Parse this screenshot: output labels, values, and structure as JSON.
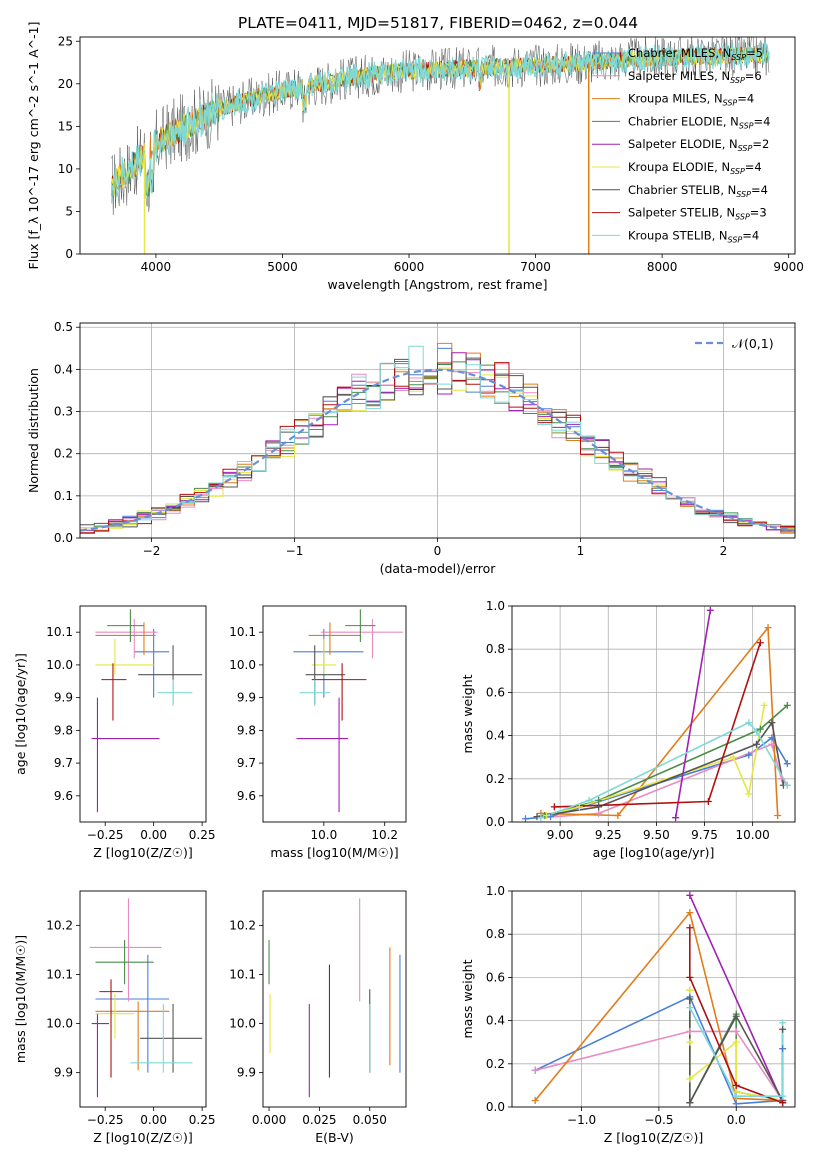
{
  "figure_title": "PLATE=0411, MJD=51817, FIBERID=0462, z=0.044",
  "colors": {
    "Chabrier MILES": "#4a7fd8",
    "Salpeter MILES": "#e88cc2",
    "Kroupa MILES": "#e07c1a",
    "Chabrier ELODIE": "#4a8c4a",
    "Salpeter ELODIE": "#a21fb5",
    "Kroupa ELODIE": "#e6e645",
    "Chabrier STELIB": "#555555",
    "Salpeter STELIB": "#b01010",
    "Kroupa STELIB": "#7fd8d8"
  },
  "chart_data": [
    {
      "id": "spectrum",
      "type": "line",
      "xlabel": "wavelength [Angstrom, rest frame]",
      "ylabel": "Flux [f_λ 10^-17 erg cm^-2 s^-1 A^-1]",
      "xlim": [
        3400,
        9050
      ],
      "ylim": [
        0,
        25.5
      ],
      "xticks": [
        4000,
        5000,
        6000,
        7000,
        8000,
        9000
      ],
      "yticks": [
        0,
        5,
        10,
        15,
        20,
        25
      ],
      "legend_position": "right",
      "legend": [
        {
          "name": "Chabrier MILES",
          "n_ssp": 5
        },
        {
          "name": "Salpeter MILES",
          "n_ssp": 6
        },
        {
          "name": "Kroupa MILES",
          "n_ssp": 4
        },
        {
          "name": "Chabrier ELODIE",
          "n_ssp": 4
        },
        {
          "name": "Salpeter ELODIE",
          "n_ssp": 2
        },
        {
          "name": "Kroupa ELODIE",
          "n_ssp": 4
        },
        {
          "name": "Chabrier STELIB",
          "n_ssp": 4
        },
        {
          "name": "Salpeter STELIB",
          "n_ssp": 3
        },
        {
          "name": "Kroupa STELIB",
          "n_ssp": 4
        }
      ],
      "continuum": {
        "x": [
          3650,
          3800,
          3950,
          4100,
          4300,
          4500,
          4700,
          4900,
          5100,
          5300,
          5500,
          5800,
          6100,
          6400,
          6700,
          7000,
          7300,
          7600,
          7900,
          8200,
          8500,
          8800
        ],
        "y": [
          8,
          10,
          12.5,
          14,
          15.5,
          17,
          18,
          18.8,
          19.5,
          20,
          20.6,
          21.3,
          21.6,
          21.8,
          22,
          22.2,
          22.4,
          22.7,
          23,
          23.2,
          23.3,
          23.4
        ]
      },
      "drops": [
        {
          "series": "Kroupa ELODIE",
          "x": 3910,
          "y_min": 0
        },
        {
          "series": "Kroupa ELODIE",
          "x": 6790,
          "y_min": 0
        },
        {
          "series": "Kroupa MILES",
          "x": 7420,
          "y_min": 0
        }
      ]
    },
    {
      "id": "residuals",
      "type": "step",
      "xlabel": "(data-model)/error",
      "ylabel": "Normed distribution",
      "xlim": [
        -2.5,
        2.5
      ],
      "ylim": [
        0,
        0.51
      ],
      "xticks": [
        -2,
        -1,
        0,
        1,
        2
      ],
      "yticks": [
        0.0,
        0.1,
        0.2,
        0.3,
        0.4,
        0.5
      ],
      "bin_width": 0.1,
      "grid": true,
      "legend": [
        "𝒩(0,1)"
      ],
      "legend_position": "top-right",
      "reference": {
        "name": "𝒩(0,1)",
        "mean": 0,
        "sigma": 1,
        "style": "dashed",
        "color": "#6a8fd8"
      }
    },
    {
      "id": "age-vs-Z",
      "type": "errorbar",
      "xlabel": "Z [log10(Z/Z☉)]",
      "ylabel": "age [log10(age/yr)]",
      "xlim": [
        -0.38,
        0.27
      ],
      "ylim": [
        9.52,
        10.18
      ],
      "xticks": [
        -0.25,
        0.0,
        0.25
      ],
      "yticks": [
        9.6,
        9.7,
        9.8,
        9.9,
        10.0,
        10.1
      ],
      "points": [
        {
          "series": "Chabrier MILES",
          "x": 0.0,
          "xerr": [
            0.1,
            0.08
          ],
          "y": 10.04,
          "yerr": [
            0.14,
            0.07
          ]
        },
        {
          "series": "Salpeter MILES",
          "x": -0.1,
          "xerr": [
            0.2,
            0.12
          ],
          "y": 10.1,
          "yerr": [
            0.08,
            0.04
          ]
        },
        {
          "series": "Kroupa MILES",
          "x": -0.05,
          "xerr": [
            0.25,
            0.06
          ],
          "y": 10.09,
          "yerr": [
            0.06,
            0.04
          ]
        },
        {
          "series": "Chabrier ELODIE",
          "x": -0.12,
          "xerr": [
            0.12,
            0.07
          ],
          "y": 10.12,
          "yerr": [
            0.05,
            0.05
          ]
        },
        {
          "series": "Salpeter ELODIE",
          "x": -0.29,
          "xerr": [
            0.03,
            0.32
          ],
          "y": 9.775,
          "yerr": [
            0.225,
            0.125
          ]
        },
        {
          "series": "Kroupa ELODIE",
          "x": -0.2,
          "xerr": [
            0.1,
            0.2
          ],
          "y": 10.0,
          "yerr": [
            0.03,
            0.08
          ]
        },
        {
          "series": "Chabrier STELIB",
          "x": 0.1,
          "xerr": [
            0.18,
            0.15
          ],
          "y": 9.97,
          "yerr": [
            0.09,
            0.09
          ]
        },
        {
          "series": "Salpeter STELIB",
          "x": -0.21,
          "xerr": [
            0.06,
            0.07
          ],
          "y": 9.955,
          "yerr": [
            0.125,
            0.05
          ]
        },
        {
          "series": "Kroupa STELIB",
          "x": 0.1,
          "xerr": [
            0.08,
            0.1
          ],
          "y": 9.915,
          "yerr": [
            0.04,
            0.04
          ]
        }
      ]
    },
    {
      "id": "age-vs-mass",
      "type": "errorbar",
      "xlabel": "mass [log10(M/M☉)]",
      "ylabel": "",
      "xlim": [
        9.8,
        10.27
      ],
      "ylim": [
        9.52,
        10.18
      ],
      "xticks": [
        10.0,
        10.2
      ],
      "yticks": [
        9.6,
        9.7,
        9.8,
        9.9,
        10.0,
        10.1
      ],
      "points": [
        {
          "series": "Chabrier MILES",
          "x": 10.0,
          "xerr": [
            0.1,
            0.13
          ],
          "y": 10.04,
          "yerr": [
            0.14,
            0.07
          ]
        },
        {
          "series": "Salpeter MILES",
          "x": 10.16,
          "xerr": [
            0.17,
            0.1
          ],
          "y": 10.1,
          "yerr": [
            0.08,
            0.04
          ]
        },
        {
          "series": "Kroupa MILES",
          "x": 10.02,
          "xerr": [
            0.07,
            0.1
          ],
          "y": 10.09,
          "yerr": [
            0.06,
            0.04
          ]
        },
        {
          "series": "Chabrier ELODIE",
          "x": 10.12,
          "xerr": [
            0.05,
            0.05
          ],
          "y": 10.12,
          "yerr": [
            0.05,
            0.05
          ]
        },
        {
          "series": "Salpeter ELODIE",
          "x": 10.05,
          "xerr": [
            0.14,
            0.03
          ],
          "y": 9.775,
          "yerr": [
            0.225,
            0.125
          ]
        },
        {
          "series": "Kroupa ELODIE",
          "x": 10.0,
          "xerr": [
            0.04,
            0.04
          ],
          "y": 10.0,
          "yerr": [
            0.03,
            0.08
          ]
        },
        {
          "series": "Chabrier STELIB",
          "x": 9.97,
          "xerr": [
            0.03,
            0.1
          ],
          "y": 9.97,
          "yerr": [
            0.09,
            0.09
          ]
        },
        {
          "series": "Salpeter STELIB",
          "x": 10.06,
          "xerr": [
            0.1,
            0.08
          ],
          "y": 9.955,
          "yerr": [
            0.125,
            0.05
          ]
        },
        {
          "series": "Kroupa STELIB",
          "x": 9.97,
          "xerr": [
            0.05,
            0.05
          ],
          "y": 9.915,
          "yerr": [
            0.04,
            0.04
          ]
        }
      ]
    },
    {
      "id": "weight-vs-age",
      "type": "line",
      "xlabel": "age [log10(age/yr)]",
      "ylabel": "mass weight",
      "xlim": [
        8.75,
        10.22
      ],
      "ylim": [
        0.0,
        1.0
      ],
      "xticks": [
        9.0,
        9.25,
        9.5,
        9.75,
        10.0
      ],
      "yticks": [
        0.0,
        0.2,
        0.4,
        0.6,
        0.8,
        1.0
      ],
      "grid": true,
      "series": [
        {
          "name": "Chabrier MILES",
          "x": [
            8.82,
            8.95,
            9.98,
            10.1,
            10.18
          ],
          "y": [
            0.015,
            0.025,
            0.31,
            0.39,
            0.27
          ]
        },
        {
          "name": "Salpeter MILES",
          "x": [
            8.9,
            9.2,
            10.1,
            10.15,
            10.18
          ],
          "y": [
            0.02,
            0.04,
            0.36,
            0.2,
            0.17
          ]
        },
        {
          "name": "Kroupa MILES",
          "x": [
            8.9,
            9.3,
            10.08,
            10.13
          ],
          "y": [
            0.04,
            0.03,
            0.9,
            0.03
          ]
        },
        {
          "name": "Chabrier ELODIE",
          "x": [
            8.92,
            9.2,
            10.04,
            10.18
          ],
          "y": [
            0.03,
            0.1,
            0.43,
            0.54
          ]
        },
        {
          "name": "Salpeter ELODIE",
          "x": [
            9.6,
            9.78
          ],
          "y": [
            0.02,
            0.98
          ]
        },
        {
          "name": "Kroupa ELODIE",
          "x": [
            8.93,
            9.1,
            9.9,
            9.98,
            10.06
          ],
          "y": [
            0.03,
            0.07,
            0.3,
            0.13,
            0.54
          ]
        },
        {
          "name": "Chabrier STELIB",
          "x": [
            8.88,
            9.2,
            10.02,
            10.1,
            10.16
          ],
          "y": [
            0.025,
            0.07,
            0.36,
            0.46,
            0.17
          ]
        },
        {
          "name": "Salpeter STELIB",
          "x": [
            8.97,
            9.77,
            10.04
          ],
          "y": [
            0.07,
            0.095,
            0.83
          ]
        },
        {
          "name": "Kroupa STELIB",
          "x": [
            8.9,
            9.15,
            9.98,
            10.02,
            10.18
          ],
          "y": [
            0.02,
            0.1,
            0.46,
            0.42,
            0.17
          ]
        }
      ]
    },
    {
      "id": "mass-vs-Z",
      "type": "errorbar",
      "xlabel": "Z [log10(Z/Z☉)]",
      "ylabel": "mass [log10(M/M☉)]",
      "xlim": [
        -0.38,
        0.27
      ],
      "ylim": [
        9.83,
        10.27
      ],
      "xticks": [
        -0.25,
        0.0,
        0.25
      ],
      "yticks": [
        9.9,
        10.0,
        10.1,
        10.2
      ],
      "points": [
        {
          "series": "Chabrier MILES",
          "x": -0.03,
          "xerr": [
            0.27,
            0.11
          ],
          "y": 10.05,
          "yerr": [
            0.15,
            0.09
          ]
        },
        {
          "series": "Salpeter MILES",
          "x": -0.13,
          "xerr": [
            0.2,
            0.17
          ],
          "y": 10.155,
          "yerr": [
            0.11,
            0.1
          ]
        },
        {
          "series": "Kroupa MILES",
          "x": -0.08,
          "xerr": [
            0.22,
            0.16
          ],
          "y": 10.025,
          "yerr": [
            0.12,
            0.02
          ]
        },
        {
          "series": "Chabrier ELODIE",
          "x": -0.15,
          "xerr": [
            0.15,
            0.15
          ],
          "y": 10.125,
          "yerr": [
            0.045,
            0.045
          ]
        },
        {
          "series": "Salpeter ELODIE",
          "x": -0.29,
          "xerr": [
            0.03,
            0.06
          ],
          "y": 10.0,
          "yerr": [
            0.15,
            0.02
          ]
        },
        {
          "series": "Kroupa ELODIE",
          "x": -0.2,
          "xerr": [
            0.1,
            0.1
          ],
          "y": 10.02,
          "yerr": [
            0.05,
            0.04
          ]
        },
        {
          "series": "Chabrier STELIB",
          "x": 0.1,
          "xerr": [
            0.17,
            0.15
          ],
          "y": 9.97,
          "yerr": [
            0.07,
            0.07
          ]
        },
        {
          "series": "Salpeter STELIB",
          "x": -0.22,
          "xerr": [
            0.06,
            0.06
          ],
          "y": 10.065,
          "yerr": [
            0.175,
            0.025
          ]
        },
        {
          "series": "Kroupa STELIB",
          "x": 0.05,
          "xerr": [
            0.17,
            0.15
          ],
          "y": 9.92,
          "yerr": [
            0.02,
            0.12
          ]
        }
      ]
    },
    {
      "id": "mass-vs-EBV",
      "type": "errorbar",
      "xlabel": "E(B-V)",
      "ylabel": "",
      "xlim": [
        -0.003,
        0.068
      ],
      "ylim": [
        9.83,
        10.27
      ],
      "xticks": [
        0.0,
        0.025,
        0.05
      ],
      "xticklabels": [
        "0.000",
        "0.025",
        "0.050"
      ],
      "yticks": [
        9.9,
        10.0,
        10.1,
        10.2
      ],
      "points": [
        {
          "series": "Chabrier MILES",
          "x": 0.065,
          "y": 10.05,
          "yerr": [
            0.15,
            0.09
          ]
        },
        {
          "series": "Salpeter MILES",
          "x": 0.045,
          "y": 10.155,
          "yerr": [
            0.11,
            0.1
          ]
        },
        {
          "series": "Kroupa MILES",
          "x": 0.06,
          "y": 10.025,
          "yerr": [
            0.11,
            0.13
          ]
        },
        {
          "series": "Chabrier ELODIE",
          "x": 0.0,
          "y": 10.125,
          "yerr": [
            0.045,
            0.045
          ]
        },
        {
          "series": "Salpeter ELODIE",
          "x": 0.02,
          "y": 9.95,
          "yerr": [
            0.1,
            0.09
          ]
        },
        {
          "series": "Kroupa ELODIE",
          "x": 0.0005,
          "y": 10.0,
          "yerr": [
            0.06,
            0.06
          ]
        },
        {
          "series": "Chabrier STELIB",
          "x": 0.05,
          "y": 9.97,
          "yerr": [
            0.07,
            0.1
          ]
        },
        {
          "series": "Salpeter STELIB",
          "x": 0.03,
          "y": 10.0,
          "yerr": [
            0.11,
            0.12
          ]
        },
        {
          "series": "Kroupa STELIB",
          "x": 0.05,
          "y": 9.97,
          "yerr": [
            0.07,
            0.07
          ]
        }
      ]
    },
    {
      "id": "weight-vs-Z",
      "type": "line",
      "xlabel": "Z [log10(Z/Z☉)]",
      "ylabel": "mass weight",
      "xlim": [
        -1.45,
        0.38
      ],
      "ylim": [
        0.0,
        1.0
      ],
      "xticks": [
        -1.0,
        -0.5,
        0.0
      ],
      "yticks": [
        0.0,
        0.2,
        0.4,
        0.6,
        0.8,
        1.0
      ],
      "grid": true,
      "series": [
        {
          "name": "Chabrier MILES",
          "x": [
            -1.3,
            -0.3,
            0.0,
            0.3,
            0.3
          ],
          "y": [
            0.17,
            0.51,
            0.015,
            0.03,
            0.27
          ]
        },
        {
          "name": "Salpeter MILES",
          "x": [
            -1.3,
            -0.3,
            0.0,
            0.3,
            0.3
          ],
          "y": [
            0.17,
            0.35,
            0.35,
            0.03,
            0.03
          ]
        },
        {
          "name": "Kroupa MILES",
          "x": [
            -1.3,
            -0.3,
            0.0,
            0.3
          ],
          "y": [
            0.03,
            0.9,
            0.04,
            0.03
          ]
        },
        {
          "name": "Chabrier ELODIE",
          "x": [
            -0.3,
            -0.3,
            0.0,
            0.0,
            0.3
          ],
          "y": [
            0.54,
            0.02,
            0.43,
            0.07,
            0.03
          ]
        },
        {
          "name": "Salpeter ELODIE",
          "x": [
            -0.3,
            0.3
          ],
          "y": [
            0.98,
            0.02
          ]
        },
        {
          "name": "Kroupa ELODIE",
          "x": [
            -0.3,
            -0.3,
            -0.3,
            0.0,
            0.0,
            0.3
          ],
          "y": [
            0.54,
            0.3,
            0.13,
            0.3,
            0.07,
            0.03
          ]
        },
        {
          "name": "Chabrier STELIB",
          "x": [
            -0.3,
            -0.3,
            0.0,
            0.3,
            0.3
          ],
          "y": [
            0.5,
            0.02,
            0.42,
            0.03,
            0.36
          ]
        },
        {
          "name": "Salpeter STELIB",
          "x": [
            -0.3,
            -0.3,
            0.0,
            0.3
          ],
          "y": [
            0.83,
            0.6,
            0.1,
            0.02
          ]
        },
        {
          "name": "Kroupa STELIB",
          "x": [
            -0.3,
            0.0,
            0.3,
            0.3
          ],
          "y": [
            0.46,
            0.05,
            0.05,
            0.39
          ]
        }
      ]
    }
  ]
}
